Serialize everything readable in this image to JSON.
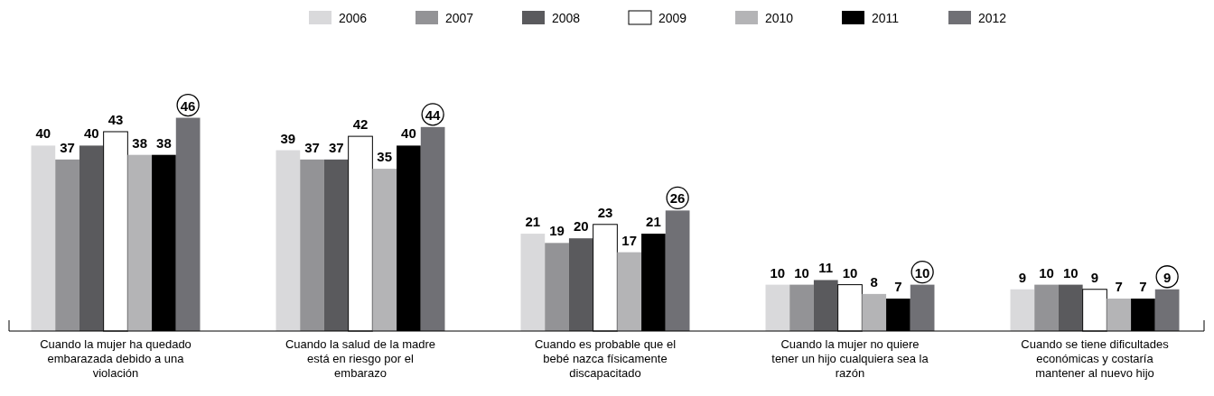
{
  "chart_data": {
    "type": "bar",
    "categories": [
      "Cuando la mujer ha quedado embarazada debido a una violación",
      "Cuando la salud de la madre está en riesgo por el embarazo",
      "Cuando es probable que el bebé nazca físicamente discapacitado",
      "Cuando la mujer no quiere tener un hijo cualquiera sea la razón",
      "Cuando se tiene dificultades económicas y costaría mantener al nuevo hijo"
    ],
    "series": [
      {
        "name": "2006",
        "color": "#d9d9db",
        "values": [
          40,
          39,
          21,
          10,
          9
        ]
      },
      {
        "name": "2007",
        "color": "#939396",
        "values": [
          37,
          37,
          19,
          10,
          10
        ]
      },
      {
        "name": "2008",
        "color": "#5a5a5d",
        "values": [
          40,
          37,
          20,
          11,
          10
        ]
      },
      {
        "name": "2009",
        "color": "#ffffff",
        "values": [
          43,
          42,
          23,
          10,
          9
        ]
      },
      {
        "name": "2010",
        "color": "#b4b4b6",
        "values": [
          38,
          35,
          17,
          8,
          7
        ]
      },
      {
        "name": "2011",
        "color": "#000000",
        "values": [
          38,
          40,
          21,
          7,
          7
        ]
      },
      {
        "name": "2012",
        "color": "#707075",
        "values": [
          46,
          44,
          26,
          10,
          9
        ]
      }
    ],
    "data_labels": true,
    "legend": "top right"
  }
}
